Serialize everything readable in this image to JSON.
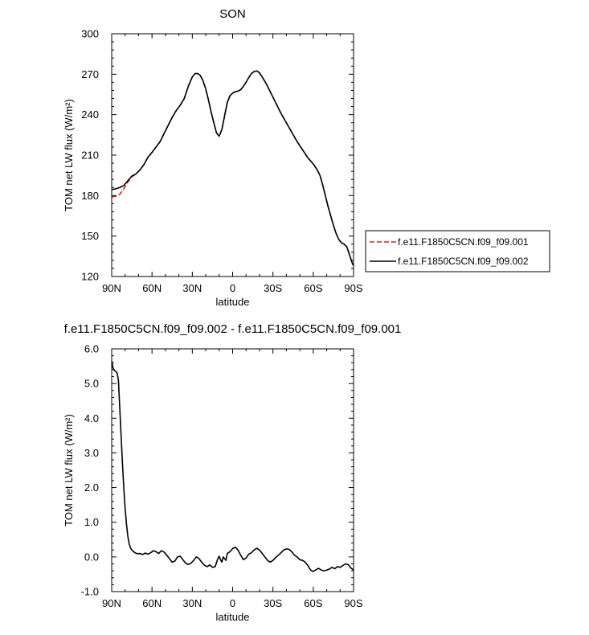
{
  "chart_data": [
    {
      "type": "line",
      "title": "SON",
      "xlabel": "latitude",
      "ylabel": "TOM net LW flux (W/m²)",
      "xlim": [
        90,
        -90
      ],
      "ylim": [
        120,
        300
      ],
      "x_ticks": [
        90,
        60,
        30,
        0,
        -30,
        -60,
        -90
      ],
      "x_tick_labels": [
        "90N",
        "60N",
        "30N",
        "0",
        "30S",
        "60S",
        "90S"
      ],
      "y_ticks": [
        120,
        150,
        180,
        210,
        240,
        270,
        300
      ],
      "y_tick_labels": [
        "120",
        "150",
        "180",
        "210",
        "240",
        "270",
        "300"
      ],
      "legend_placement": "outside-right",
      "series": [
        {
          "name": "f.e11.F1850C5CN.f09_f09.001",
          "color": "#e0201b",
          "dash": "dashed",
          "points": [
            [
              90,
              179
            ],
            [
              87,
              179.5
            ],
            [
              84,
              181
            ],
            [
              81,
              185
            ],
            [
              78,
              190
            ],
            [
              75,
              194
            ],
            [
              72,
              196
            ],
            [
              69,
              199
            ],
            [
              66,
              203
            ],
            [
              63,
              208.5
            ],
            [
              60,
              212
            ],
            [
              57,
              216
            ],
            [
              54,
              220
            ],
            [
              51,
              226
            ],
            [
              48,
              232
            ],
            [
              45,
              238
            ],
            [
              42,
              243
            ],
            [
              39,
              247
            ],
            [
              36,
              252
            ],
            [
              33,
              261
            ],
            [
              30,
              268
            ],
            [
              28,
              270.5
            ],
            [
              26,
              270.5
            ],
            [
              24,
              269
            ],
            [
              22,
              265
            ],
            [
              20,
              259
            ],
            [
              18,
              251
            ],
            [
              16,
              242
            ],
            [
              14,
              234
            ],
            [
              12,
              226.5
            ],
            [
              10,
              224
            ],
            [
              8,
              229
            ],
            [
              6,
              239
            ],
            [
              4,
              249
            ],
            [
              2,
              254
            ],
            [
              0,
              256
            ],
            [
              -2,
              257
            ],
            [
              -4,
              257.5
            ],
            [
              -6,
              258.5
            ],
            [
              -8,
              261
            ],
            [
              -10,
              264
            ],
            [
              -12,
              267.5
            ],
            [
              -14,
              270.5
            ],
            [
              -16,
              272
            ],
            [
              -18,
              272.5
            ],
            [
              -20,
              271
            ],
            [
              -22,
              268
            ],
            [
              -25,
              263
            ],
            [
              -28,
              257
            ],
            [
              -32,
              249
            ],
            [
              -36,
              241
            ],
            [
              -40,
              234
            ],
            [
              -44,
              227
            ],
            [
              -48,
              220
            ],
            [
              -52,
              214
            ],
            [
              -56,
              208
            ],
            [
              -60,
              203.5
            ],
            [
              -63,
              199
            ],
            [
              -65,
              195
            ],
            [
              -67,
              188
            ],
            [
              -69,
              180
            ],
            [
              -71,
              172
            ],
            [
              -73,
              165
            ],
            [
              -75,
              158
            ],
            [
              -77,
              152
            ],
            [
              -79,
              147.5
            ],
            [
              -81,
              145
            ],
            [
              -83,
              144
            ],
            [
              -85,
              142
            ],
            [
              -87,
              136
            ],
            [
              -89,
              130
            ],
            [
              -90,
              128
            ]
          ]
        },
        {
          "name": "f.e11.F1850C5CN.f09_f09.002",
          "color": "#000000",
          "dash": "solid",
          "points": [
            [
              90,
              184.5
            ],
            [
              87,
              185
            ],
            [
              84,
              186
            ],
            [
              81,
              187.5
            ],
            [
              78,
              191
            ],
            [
              75,
              194.5
            ],
            [
              72,
              196
            ],
            [
              69,
              199
            ],
            [
              66,
              203
            ],
            [
              63,
              208.5
            ],
            [
              60,
              212
            ],
            [
              57,
              216
            ],
            [
              54,
              220
            ],
            [
              51,
              226
            ],
            [
              48,
              232
            ],
            [
              45,
              238
            ],
            [
              42,
              243
            ],
            [
              39,
              247
            ],
            [
              36,
              252
            ],
            [
              33,
              261
            ],
            [
              30,
              268
            ],
            [
              28,
              270.5
            ],
            [
              26,
              270.5
            ],
            [
              24,
              269
            ],
            [
              22,
              265
            ],
            [
              20,
              259
            ],
            [
              18,
              251
            ],
            [
              16,
              242
            ],
            [
              14,
              234
            ],
            [
              12,
              226.5
            ],
            [
              10,
              224
            ],
            [
              8,
              229
            ],
            [
              6,
              239
            ],
            [
              4,
              249
            ],
            [
              2,
              254
            ],
            [
              0,
              256
            ],
            [
              -2,
              257
            ],
            [
              -4,
              257.5
            ],
            [
              -6,
              258.5
            ],
            [
              -8,
              261
            ],
            [
              -10,
              264
            ],
            [
              -12,
              267.5
            ],
            [
              -14,
              270.5
            ],
            [
              -16,
              272
            ],
            [
              -18,
              272.5
            ],
            [
              -20,
              271
            ],
            [
              -22,
              268
            ],
            [
              -25,
              263
            ],
            [
              -28,
              257
            ],
            [
              -32,
              249
            ],
            [
              -36,
              241
            ],
            [
              -40,
              234
            ],
            [
              -44,
              227
            ],
            [
              -48,
              220
            ],
            [
              -52,
              214
            ],
            [
              -56,
              208
            ],
            [
              -60,
              203.5
            ],
            [
              -63,
              199
            ],
            [
              -65,
              195
            ],
            [
              -67,
              188
            ],
            [
              -69,
              180
            ],
            [
              -71,
              172
            ],
            [
              -73,
              165
            ],
            [
              -75,
              158
            ],
            [
              -77,
              152
            ],
            [
              -79,
              147.5
            ],
            [
              -81,
              145
            ],
            [
              -83,
              144
            ],
            [
              -85,
              142
            ],
            [
              -87,
              136
            ],
            [
              -89,
              130
            ],
            [
              -90,
              128
            ]
          ]
        }
      ]
    },
    {
      "type": "line",
      "title": "f.e11.F1850C5CN.f09_f09.002 - f.e11.F1850C5CN.f09_f09.001",
      "xlabel": "latitude",
      "ylabel": "TOM net LW flux (W/m²)",
      "xlim": [
        90,
        -90
      ],
      "ylim": [
        -1.0,
        6.0
      ],
      "x_ticks": [
        90,
        60,
        30,
        0,
        -30,
        -60,
        -90
      ],
      "x_tick_labels": [
        "90N",
        "60N",
        "30N",
        "0",
        "30S",
        "60S",
        "90S"
      ],
      "y_ticks": [
        -1.0,
        0.0,
        1.0,
        2.0,
        3.0,
        4.0,
        5.0,
        6.0
      ],
      "y_tick_labels": [
        "-1.0",
        "0.0",
        "1.0",
        "2.0",
        "3.0",
        "4.0",
        "5.0",
        "6.0"
      ],
      "series": [
        {
          "color": "#000000",
          "dash": "solid",
          "points": [
            [
              90,
              5.65
            ],
            [
              89,
              5.45
            ],
            [
              88,
              5.38
            ],
            [
              87,
              5.35
            ],
            [
              86,
              5.3
            ],
            [
              85,
              5.1
            ],
            [
              84,
              4.3
            ],
            [
              83,
              3.5
            ],
            [
              82,
              2.7
            ],
            [
              81,
              2.0
            ],
            [
              80,
              1.4
            ],
            [
              79,
              0.95
            ],
            [
              78,
              0.6
            ],
            [
              77,
              0.38
            ],
            [
              76,
              0.26
            ],
            [
              75,
              0.2
            ],
            [
              73,
              0.13
            ],
            [
              71,
              0.09
            ],
            [
              69,
              0.1
            ],
            [
              67,
              0.07
            ],
            [
              65,
              0.11
            ],
            [
              63,
              0.08
            ],
            [
              61,
              0.12
            ],
            [
              59,
              0.18
            ],
            [
              57,
              0.15
            ],
            [
              55,
              0.1
            ],
            [
              53,
              0.18
            ],
            [
              51,
              0.14
            ],
            [
              49,
              0.05
            ],
            [
              47,
              -0.05
            ],
            [
              45,
              -0.15
            ],
            [
              43,
              -0.12
            ],
            [
              41,
              0.0
            ],
            [
              39,
              0.02
            ],
            [
              37,
              -0.08
            ],
            [
              35,
              -0.18
            ],
            [
              33,
              -0.22
            ],
            [
              31,
              -0.18
            ],
            [
              29,
              -0.1
            ],
            [
              27,
              0.0
            ],
            [
              25,
              -0.05
            ],
            [
              23,
              -0.15
            ],
            [
              21,
              -0.24
            ],
            [
              19,
              -0.28
            ],
            [
              17,
              -0.23
            ],
            [
              15,
              -0.3
            ],
            [
              13,
              -0.28
            ],
            [
              11,
              -0.05
            ],
            [
              10,
              0.02
            ],
            [
              9,
              -0.08
            ],
            [
              8,
              -0.15
            ],
            [
              7,
              0.0
            ],
            [
              6,
              -0.05
            ],
            [
              5,
              -0.1
            ],
            [
              4,
              0.1
            ],
            [
              2,
              0.15
            ],
            [
              0,
              0.24
            ],
            [
              -2,
              0.28
            ],
            [
              -4,
              0.2
            ],
            [
              -6,
              0.05
            ],
            [
              -8,
              -0.08
            ],
            [
              -10,
              -0.03
            ],
            [
              -12,
              0.08
            ],
            [
              -14,
              0.12
            ],
            [
              -16,
              0.2
            ],
            [
              -18,
              0.25
            ],
            [
              -20,
              0.2
            ],
            [
              -22,
              0.1
            ],
            [
              -24,
              0.0
            ],
            [
              -26,
              -0.1
            ],
            [
              -28,
              -0.15
            ],
            [
              -30,
              -0.1
            ],
            [
              -32,
              -0.02
            ],
            [
              -34,
              0.05
            ],
            [
              -36,
              0.12
            ],
            [
              -38,
              0.2
            ],
            [
              -40,
              0.23
            ],
            [
              -42,
              0.22
            ],
            [
              -44,
              0.15
            ],
            [
              -46,
              0.05
            ],
            [
              -48,
              0.0
            ],
            [
              -50,
              -0.08
            ],
            [
              -52,
              -0.1
            ],
            [
              -54,
              -0.15
            ],
            [
              -56,
              -0.25
            ],
            [
              -58,
              -0.38
            ],
            [
              -60,
              -0.42
            ],
            [
              -62,
              -0.37
            ],
            [
              -64,
              -0.33
            ],
            [
              -66,
              -0.38
            ],
            [
              -68,
              -0.4
            ],
            [
              -70,
              -0.38
            ],
            [
              -72,
              -0.35
            ],
            [
              -74,
              -0.3
            ],
            [
              -76,
              -0.34
            ],
            [
              -78,
              -0.28
            ],
            [
              -80,
              -0.3
            ],
            [
              -82,
              -0.25
            ],
            [
              -84,
              -0.2
            ],
            [
              -86,
              -0.22
            ],
            [
              -88,
              -0.32
            ],
            [
              -90,
              -0.38
            ]
          ]
        }
      ]
    }
  ]
}
